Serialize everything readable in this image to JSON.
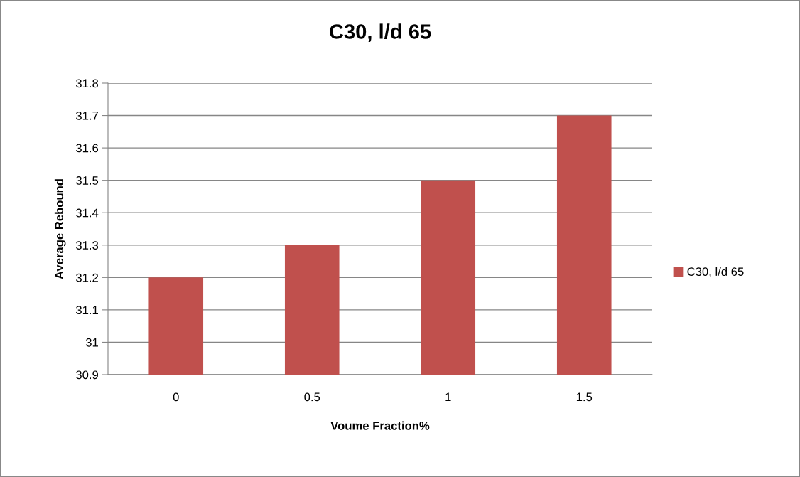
{
  "chart_data": {
    "type": "bar",
    "title": "C30, l/d 65",
    "xlabel": "Voume Fraction%",
    "ylabel": "Average Rebound",
    "categories": [
      "0",
      "0.5",
      "1",
      "1.5"
    ],
    "series": [
      {
        "name": "C30, l/d 65",
        "color": "#c0504d",
        "values": [
          31.2,
          31.3,
          31.5,
          31.7
        ]
      }
    ],
    "ylim": [
      30.9,
      31.8
    ],
    "yticks": [
      {
        "value": 30.9,
        "label": "30.9"
      },
      {
        "value": 31,
        "label": "31"
      },
      {
        "value": 31.1,
        "label": "31.1"
      },
      {
        "value": 31.2,
        "label": "31.2"
      },
      {
        "value": 31.3,
        "label": "31.3"
      },
      {
        "value": 31.4,
        "label": "31.4"
      },
      {
        "value": 31.5,
        "label": "31.5"
      },
      {
        "value": 31.6,
        "label": "31.6"
      },
      {
        "value": 31.7,
        "label": "31.7"
      },
      {
        "value": 31.8,
        "label": "31.8"
      }
    ],
    "grid": "y",
    "legend": "right"
  }
}
